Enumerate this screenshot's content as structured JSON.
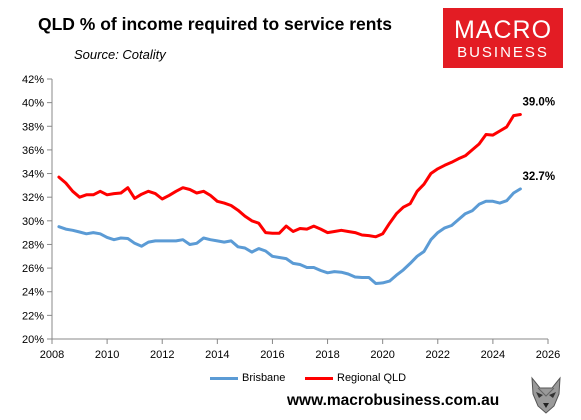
{
  "header": {
    "title": "QLD % of income required to service rents",
    "source": "Source: Cotality"
  },
  "logo": {
    "line1": "MACRO",
    "line2": "BUSINESS"
  },
  "footer": {
    "website": "www.macrobusiness.com.au"
  },
  "chart_data": {
    "type": "line",
    "title": "QLD % of income required to service rents",
    "xlabel": "",
    "ylabel": "",
    "xlim": [
      2008,
      2026
    ],
    "ylim": [
      20,
      42
    ],
    "x_ticks": [
      2008,
      2010,
      2012,
      2014,
      2016,
      2018,
      2020,
      2022,
      2024,
      2026
    ],
    "y_ticks": [
      20,
      22,
      24,
      26,
      28,
      30,
      32,
      34,
      36,
      38,
      40,
      42
    ],
    "y_tick_format": "%",
    "grid": false,
    "legend_position": "bottom",
    "series": [
      {
        "name": "Brisbane",
        "color": "#5b9bd5",
        "end_label": "32.7%",
        "points": [
          [
            2008.25,
            29.5
          ],
          [
            2008.5,
            29.3
          ],
          [
            2008.75,
            29.2
          ],
          [
            2009.0,
            29.05
          ],
          [
            2009.25,
            28.9
          ],
          [
            2009.5,
            29.0
          ],
          [
            2009.75,
            28.9
          ],
          [
            2010.0,
            28.6
          ],
          [
            2010.25,
            28.4
          ],
          [
            2010.5,
            28.55
          ],
          [
            2010.75,
            28.5
          ],
          [
            2011.0,
            28.1
          ],
          [
            2011.25,
            27.85
          ],
          [
            2011.5,
            28.2
          ],
          [
            2011.75,
            28.3
          ],
          [
            2012.0,
            28.3
          ],
          [
            2012.25,
            28.3
          ],
          [
            2012.5,
            28.3
          ],
          [
            2012.75,
            28.4
          ],
          [
            2013.0,
            28.0
          ],
          [
            2013.25,
            28.1
          ],
          [
            2013.5,
            28.55
          ],
          [
            2013.75,
            28.4
          ],
          [
            2014.0,
            28.3
          ],
          [
            2014.25,
            28.2
          ],
          [
            2014.5,
            28.3
          ],
          [
            2014.75,
            27.8
          ],
          [
            2015.0,
            27.7
          ],
          [
            2015.25,
            27.35
          ],
          [
            2015.5,
            27.65
          ],
          [
            2015.75,
            27.45
          ],
          [
            2016.0,
            27.0
          ],
          [
            2016.25,
            26.9
          ],
          [
            2016.5,
            26.8
          ],
          [
            2016.75,
            26.4
          ],
          [
            2017.0,
            26.3
          ],
          [
            2017.25,
            26.05
          ],
          [
            2017.5,
            26.05
          ],
          [
            2017.75,
            25.8
          ],
          [
            2018.0,
            25.6
          ],
          [
            2018.25,
            25.7
          ],
          [
            2018.5,
            25.65
          ],
          [
            2018.75,
            25.5
          ],
          [
            2019.0,
            25.25
          ],
          [
            2019.25,
            25.2
          ],
          [
            2019.5,
            25.2
          ],
          [
            2019.75,
            24.7
          ],
          [
            2020.0,
            24.75
          ],
          [
            2020.25,
            24.9
          ],
          [
            2020.5,
            25.4
          ],
          [
            2020.75,
            25.85
          ],
          [
            2021.0,
            26.4
          ],
          [
            2021.25,
            27.0
          ],
          [
            2021.5,
            27.4
          ],
          [
            2021.75,
            28.4
          ],
          [
            2022.0,
            29.0
          ],
          [
            2022.25,
            29.4
          ],
          [
            2022.5,
            29.6
          ],
          [
            2022.75,
            30.1
          ],
          [
            2023.0,
            30.6
          ],
          [
            2023.25,
            30.85
          ],
          [
            2023.5,
            31.4
          ],
          [
            2023.75,
            31.65
          ],
          [
            2024.0,
            31.65
          ],
          [
            2024.25,
            31.5
          ],
          [
            2024.5,
            31.7
          ],
          [
            2024.75,
            32.35
          ],
          [
            2025.0,
            32.7
          ]
        ]
      },
      {
        "name": "Regional QLD",
        "color": "#ff0000",
        "end_label": "39.0%",
        "points": [
          [
            2008.25,
            33.7
          ],
          [
            2008.5,
            33.2
          ],
          [
            2008.75,
            32.5
          ],
          [
            2009.0,
            32.0
          ],
          [
            2009.25,
            32.2
          ],
          [
            2009.5,
            32.2
          ],
          [
            2009.75,
            32.5
          ],
          [
            2010.0,
            32.2
          ],
          [
            2010.25,
            32.3
          ],
          [
            2010.5,
            32.35
          ],
          [
            2010.75,
            32.8
          ],
          [
            2011.0,
            31.9
          ],
          [
            2011.25,
            32.25
          ],
          [
            2011.5,
            32.5
          ],
          [
            2011.75,
            32.3
          ],
          [
            2012.0,
            31.85
          ],
          [
            2012.25,
            32.15
          ],
          [
            2012.5,
            32.5
          ],
          [
            2012.75,
            32.8
          ],
          [
            2013.0,
            32.65
          ],
          [
            2013.25,
            32.35
          ],
          [
            2013.5,
            32.5
          ],
          [
            2013.75,
            32.15
          ],
          [
            2014.0,
            31.65
          ],
          [
            2014.25,
            31.5
          ],
          [
            2014.5,
            31.3
          ],
          [
            2014.75,
            30.9
          ],
          [
            2015.0,
            30.4
          ],
          [
            2015.25,
            30.0
          ],
          [
            2015.5,
            29.8
          ],
          [
            2015.75,
            29.0
          ],
          [
            2016.0,
            28.95
          ],
          [
            2016.25,
            28.95
          ],
          [
            2016.5,
            29.55
          ],
          [
            2016.75,
            29.1
          ],
          [
            2017.0,
            29.35
          ],
          [
            2017.25,
            29.3
          ],
          [
            2017.5,
            29.55
          ],
          [
            2017.75,
            29.3
          ],
          [
            2018.0,
            29.0
          ],
          [
            2018.25,
            29.1
          ],
          [
            2018.5,
            29.2
          ],
          [
            2018.75,
            29.1
          ],
          [
            2019.0,
            29.0
          ],
          [
            2019.25,
            28.8
          ],
          [
            2019.5,
            28.75
          ],
          [
            2019.75,
            28.65
          ],
          [
            2020.0,
            28.9
          ],
          [
            2020.25,
            29.8
          ],
          [
            2020.5,
            30.6
          ],
          [
            2020.75,
            31.15
          ],
          [
            2021.0,
            31.45
          ],
          [
            2021.25,
            32.5
          ],
          [
            2021.5,
            33.1
          ],
          [
            2021.75,
            34.0
          ],
          [
            2022.0,
            34.4
          ],
          [
            2022.25,
            34.7
          ],
          [
            2022.5,
            34.95
          ],
          [
            2022.75,
            35.25
          ],
          [
            2023.0,
            35.5
          ],
          [
            2023.25,
            36.0
          ],
          [
            2023.5,
            36.5
          ],
          [
            2023.75,
            37.3
          ],
          [
            2024.0,
            37.25
          ],
          [
            2024.25,
            37.6
          ],
          [
            2024.5,
            37.95
          ],
          [
            2024.75,
            38.9
          ],
          [
            2025.0,
            39.0
          ]
        ]
      }
    ]
  }
}
